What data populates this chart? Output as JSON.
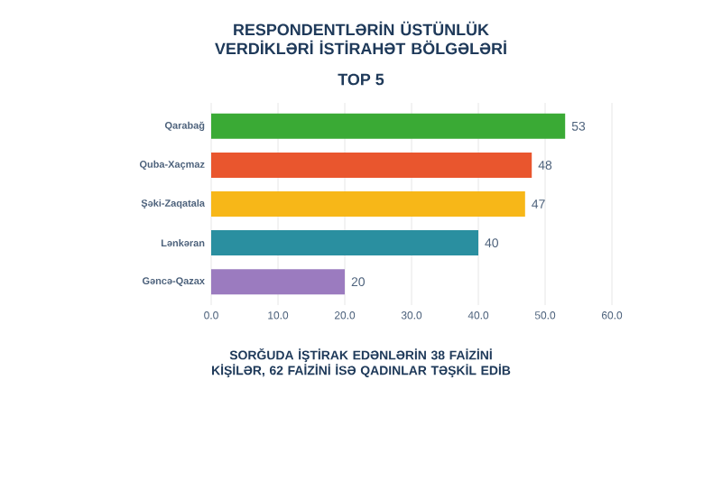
{
  "chart_data": {
    "type": "bar",
    "orientation": "horizontal",
    "title": "RESPONDENTLƏRİN ÜSTÜNLÜK VERDİKLƏRİ İSTİRAHƏT BÖLGƏLƏRİ",
    "subtitle": "TOP 5",
    "categories": [
      "Qarabağ",
      "Quba-Xaçmaz",
      "Şəki-Zaqatala",
      "Lənkəran",
      "Gəncə-Qazax"
    ],
    "values": [
      53,
      48,
      47,
      40,
      20
    ],
    "colors": [
      "#3aaa35",
      "#e9562e",
      "#f7b718",
      "#2a8fa0",
      "#9b7bbf"
    ],
    "xlim": [
      0,
      60
    ],
    "xticks": [
      {
        "value": 0,
        "label": "0.0"
      },
      {
        "value": 10,
        "label": "10.0"
      },
      {
        "value": 20,
        "label": "20.0"
      },
      {
        "value": 30,
        "label": "30.0"
      },
      {
        "value": 40,
        "label": "40.0"
      },
      {
        "value": 50,
        "label": "50.0"
      },
      {
        "value": 60,
        "label": "60.0"
      }
    ],
    "grid": "x",
    "data_labels": true,
    "annotations": [
      "SORĞUDA İŞTİRAK EDƏNLƏRİN 38 FAİZİNİ KİŞİLƏR, 62 FAİZİNİ İSƏ QADINLAR TƏŞKİL EDİB"
    ]
  }
}
